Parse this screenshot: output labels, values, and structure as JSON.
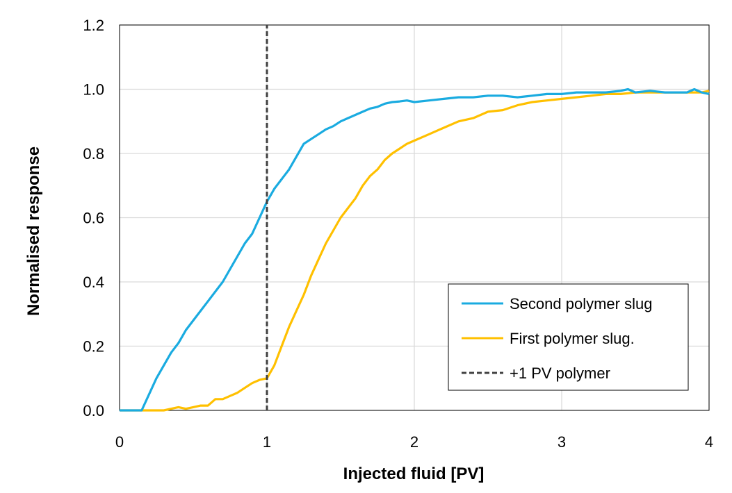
{
  "chart_data": {
    "type": "line",
    "title": "",
    "xlabel": "Injected fluid [PV]",
    "ylabel": "Normalised response",
    "xlim": [
      0,
      4
    ],
    "ylim": [
      0,
      1.2
    ],
    "x_ticks": [
      "0",
      "1",
      "2",
      "3",
      "4"
    ],
    "y_ticks": [
      "0.0",
      "0.2",
      "0.4",
      "0.6",
      "0.8",
      "1.0",
      "1.2"
    ],
    "grid": true,
    "legend_position": "lower-right",
    "series": [
      {
        "name": "Second polymer slug",
        "color": "#1aabe0",
        "style": "solid",
        "points": [
          [
            0,
            0.0
          ],
          [
            0.1,
            0.0
          ],
          [
            0.15,
            0.0
          ],
          [
            0.2,
            0.05
          ],
          [
            0.25,
            0.1
          ],
          [
            0.3,
            0.14
          ],
          [
            0.35,
            0.18
          ],
          [
            0.4,
            0.21
          ],
          [
            0.45,
            0.25
          ],
          [
            0.5,
            0.28
          ],
          [
            0.55,
            0.31
          ],
          [
            0.6,
            0.34
          ],
          [
            0.65,
            0.37
          ],
          [
            0.7,
            0.4
          ],
          [
            0.75,
            0.44
          ],
          [
            0.8,
            0.48
          ],
          [
            0.85,
            0.52
          ],
          [
            0.9,
            0.55
          ],
          [
            0.95,
            0.6
          ],
          [
            1.0,
            0.65
          ],
          [
            1.05,
            0.69
          ],
          [
            1.1,
            0.72
          ],
          [
            1.15,
            0.75
          ],
          [
            1.2,
            0.79
          ],
          [
            1.25,
            0.83
          ],
          [
            1.3,
            0.845
          ],
          [
            1.35,
            0.86
          ],
          [
            1.4,
            0.875
          ],
          [
            1.45,
            0.885
          ],
          [
            1.5,
            0.9
          ],
          [
            1.55,
            0.91
          ],
          [
            1.6,
            0.92
          ],
          [
            1.65,
            0.93
          ],
          [
            1.7,
            0.94
          ],
          [
            1.75,
            0.945
          ],
          [
            1.8,
            0.955
          ],
          [
            1.85,
            0.96
          ],
          [
            1.9,
            0.962
          ],
          [
            1.95,
            0.965
          ],
          [
            2.0,
            0.96
          ],
          [
            2.1,
            0.965
          ],
          [
            2.2,
            0.97
          ],
          [
            2.3,
            0.975
          ],
          [
            2.4,
            0.975
          ],
          [
            2.5,
            0.98
          ],
          [
            2.6,
            0.98
          ],
          [
            2.7,
            0.975
          ],
          [
            2.8,
            0.98
          ],
          [
            2.9,
            0.985
          ],
          [
            3.0,
            0.985
          ],
          [
            3.1,
            0.99
          ],
          [
            3.2,
            0.99
          ],
          [
            3.3,
            0.99
          ],
          [
            3.4,
            0.995
          ],
          [
            3.45,
            1.0
          ],
          [
            3.5,
            0.99
          ],
          [
            3.6,
            0.995
          ],
          [
            3.7,
            0.99
          ],
          [
            3.8,
            0.99
          ],
          [
            3.85,
            0.99
          ],
          [
            3.9,
            1.0
          ],
          [
            3.95,
            0.99
          ],
          [
            4.0,
            0.985
          ]
        ]
      },
      {
        "name": "First polymer slug.",
        "color": "#ffc000",
        "style": "solid",
        "points": [
          [
            0,
            0.0
          ],
          [
            0.2,
            0.0
          ],
          [
            0.3,
            0.0
          ],
          [
            0.35,
            0.005
          ],
          [
            0.4,
            0.01
          ],
          [
            0.45,
            0.005
          ],
          [
            0.5,
            0.01
          ],
          [
            0.55,
            0.015
          ],
          [
            0.6,
            0.015
          ],
          [
            0.65,
            0.035
          ],
          [
            0.7,
            0.035
          ],
          [
            0.75,
            0.045
          ],
          [
            0.8,
            0.055
          ],
          [
            0.85,
            0.07
          ],
          [
            0.9,
            0.085
          ],
          [
            0.95,
            0.095
          ],
          [
            1.0,
            0.1
          ],
          [
            1.05,
            0.14
          ],
          [
            1.1,
            0.2
          ],
          [
            1.15,
            0.26
          ],
          [
            1.2,
            0.31
          ],
          [
            1.25,
            0.36
          ],
          [
            1.3,
            0.42
          ],
          [
            1.35,
            0.47
          ],
          [
            1.4,
            0.52
          ],
          [
            1.45,
            0.56
          ],
          [
            1.5,
            0.6
          ],
          [
            1.55,
            0.63
          ],
          [
            1.6,
            0.66
          ],
          [
            1.65,
            0.7
          ],
          [
            1.7,
            0.73
          ],
          [
            1.75,
            0.75
          ],
          [
            1.8,
            0.78
          ],
          [
            1.85,
            0.8
          ],
          [
            1.9,
            0.815
          ],
          [
            1.95,
            0.83
          ],
          [
            2.0,
            0.84
          ],
          [
            2.1,
            0.86
          ],
          [
            2.2,
            0.88
          ],
          [
            2.3,
            0.9
          ],
          [
            2.4,
            0.91
          ],
          [
            2.5,
            0.93
          ],
          [
            2.6,
            0.935
          ],
          [
            2.7,
            0.95
          ],
          [
            2.8,
            0.96
          ],
          [
            2.9,
            0.965
          ],
          [
            3.0,
            0.97
          ],
          [
            3.1,
            0.975
          ],
          [
            3.2,
            0.98
          ],
          [
            3.3,
            0.985
          ],
          [
            3.4,
            0.985
          ],
          [
            3.5,
            0.99
          ],
          [
            3.6,
            0.99
          ],
          [
            3.7,
            0.99
          ],
          [
            3.8,
            0.99
          ],
          [
            3.9,
            0.99
          ],
          [
            3.95,
            0.99
          ],
          [
            4.0,
            0.995
          ]
        ]
      },
      {
        "name": "+1 PV polymer",
        "color": "#404040",
        "style": "dashed",
        "points": [
          [
            1,
            0
          ],
          [
            1,
            1.2
          ]
        ]
      }
    ]
  }
}
